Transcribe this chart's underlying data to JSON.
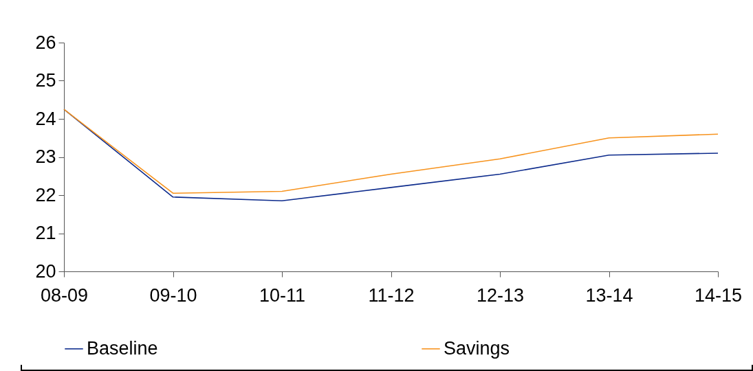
{
  "chart_data": {
    "type": "line",
    "categories": [
      "08-09",
      "09-10",
      "10-11",
      "11-12",
      "12-13",
      "13-14",
      "14-15"
    ],
    "series": [
      {
        "name": "Baseline",
        "color": "#0d2b8c",
        "values": [
          24.25,
          21.95,
          21.85,
          22.2,
          22.55,
          23.05,
          23.1
        ]
      },
      {
        "name": "Savings",
        "color": "#f7931e",
        "values": [
          24.25,
          22.05,
          22.1,
          22.55,
          22.95,
          23.5,
          23.6
        ]
      }
    ],
    "ylim": [
      20,
      26
    ],
    "yticks": [
      20,
      21,
      22,
      23,
      24,
      25,
      26
    ],
    "grid": false,
    "legend": "bottom",
    "marker": "none",
    "line_style": "solid"
  }
}
